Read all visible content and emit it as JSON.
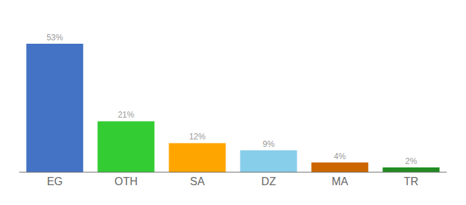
{
  "chart_data": {
    "type": "bar",
    "categories": [
      "EG",
      "OTH",
      "SA",
      "DZ",
      "MA",
      "TR"
    ],
    "values": [
      53,
      21,
      12,
      9,
      4,
      2
    ],
    "value_labels": [
      "53%",
      "21%",
      "12%",
      "9%",
      "4%",
      "2%"
    ],
    "colors": [
      "#4472C4",
      "#33CC33",
      "#FFA500",
      "#87CEEB",
      "#CC6600",
      "#228B22"
    ],
    "ylim": [
      0,
      62
    ],
    "grid": false,
    "data_labels": true,
    "tick_labels": "x"
  }
}
